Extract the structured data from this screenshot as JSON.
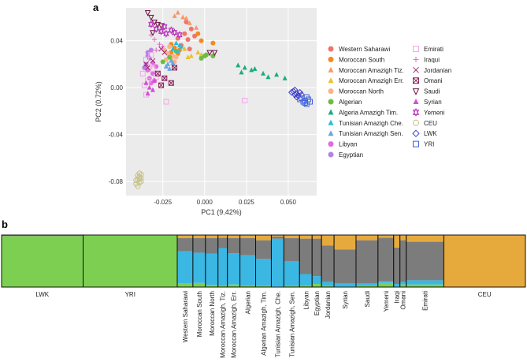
{
  "panel_a_label": "a",
  "panel_b_label": "b",
  "chart_data": [
    {
      "type": "scatter",
      "xlabel": "PC1 (9.42%)",
      "ylabel": "PC2 (0.72%)",
      "xlim": [
        -0.047,
        0.067
      ],
      "ylim": [
        -0.092,
        0.068
      ],
      "xticks": [
        "-0.025",
        "0.000",
        "0.025",
        "0.050"
      ],
      "xtick_values": [
        -0.025,
        0.0,
        0.025,
        0.05
      ],
      "yticks": [
        "0.04",
        "0.00",
        "-0.04",
        "-0.08"
      ],
      "ytick_values": [
        0.04,
        0.0,
        -0.04,
        -0.08
      ],
      "grid": true,
      "background": "#ebebeb",
      "legend_position": "right",
      "series": [
        {
          "name": "Western Saharawi",
          "color": "#f0736b",
          "marker": "circle",
          "points": [
            [
              -0.012,
              0.046
            ],
            [
              -0.01,
              0.041
            ],
            [
              -0.008,
              0.05
            ],
            [
              -0.014,
              0.036
            ],
            [
              -0.009,
              0.033
            ],
            [
              -0.016,
              0.042
            ],
            [
              -0.011,
              0.056
            ],
            [
              -0.006,
              0.044
            ]
          ]
        },
        {
          "name": "Moroccan South",
          "color": "#f28a1e",
          "marker": "circle",
          "points": [
            [
              -0.02,
              0.03
            ],
            [
              -0.018,
              0.034
            ],
            [
              -0.02,
              0.037
            ],
            [
              -0.016,
              0.029
            ],
            [
              -0.004,
              0.046
            ],
            [
              -0.002,
              0.04
            ],
            [
              0.005,
              0.038
            ],
            [
              -0.015,
              0.032
            ]
          ]
        },
        {
          "name": "Moroccan Amazigh Tiz.",
          "color": "#f59a6b",
          "marker": "triangle",
          "points": [
            [
              -0.013,
              0.06
            ],
            [
              -0.016,
              0.064
            ],
            [
              -0.011,
              0.059
            ],
            [
              -0.005,
              0.051
            ],
            [
              -0.018,
              0.061
            ],
            [
              -0.009,
              0.055
            ]
          ]
        },
        {
          "name": "Moroccan Amazigh Err.",
          "color": "#e8c230",
          "marker": "triangle",
          "points": [
            [
              -0.008,
              0.027
            ],
            [
              -0.004,
              0.03
            ],
            [
              -0.012,
              0.033
            ],
            [
              -0.01,
              0.026
            ],
            [
              -0.002,
              0.028
            ]
          ]
        },
        {
          "name": "Moroccan North",
          "color": "#f7b58a",
          "marker": "circle",
          "points": [
            [
              -0.022,
              0.029
            ],
            [
              -0.02,
              0.025
            ],
            [
              -0.024,
              0.032
            ],
            [
              -0.018,
              0.022
            ],
            [
              -0.021,
              0.035
            ],
            [
              -0.019,
              0.027
            ],
            [
              -0.023,
              0.024
            ],
            [
              -0.017,
              0.026
            ]
          ]
        },
        {
          "name": "Algerian",
          "color": "#6cbd45",
          "marker": "circle",
          "points": [
            [
              -0.021,
              0.026
            ],
            [
              -0.017,
              0.031
            ],
            [
              -0.025,
              0.022
            ],
            [
              0.001,
              0.028
            ],
            [
              0.005,
              0.027
            ],
            [
              -0.002,
              0.025
            ],
            [
              0.0,
              0.027
            ]
          ]
        },
        {
          "name": "Algeria Amazigh Tim.",
          "color": "#1aad7e",
          "marker": "triangle",
          "points": [
            [
              0.02,
              0.019
            ],
            [
              0.024,
              0.017
            ],
            [
              0.028,
              0.015
            ],
            [
              0.035,
              0.012
            ],
            [
              0.038,
              0.009
            ],
            [
              0.043,
              0.011
            ],
            [
              0.048,
              0.008
            ],
            [
              0.022,
              0.013
            ],
            [
              0.03,
              0.016
            ]
          ]
        },
        {
          "name": "Tunisian Amazigh Che.",
          "color": "#2bbcd8",
          "marker": "triangle",
          "points": [
            [
              -0.017,
              0.038
            ],
            [
              -0.015,
              0.036
            ],
            [
              -0.019,
              0.033
            ],
            [
              -0.014,
              0.035
            ],
            [
              -0.016,
              0.031
            ]
          ]
        },
        {
          "name": "Tunisian Amazigh Sen.",
          "color": "#6aa6e0",
          "marker": "triangle",
          "points": [
            [
              -0.022,
              0.02
            ],
            [
              -0.02,
              0.023
            ],
            [
              -0.023,
              0.018
            ],
            [
              -0.019,
              0.021
            ],
            [
              -0.021,
              0.016
            ]
          ]
        },
        {
          "name": "Libyan",
          "color": "#e26be0",
          "marker": "circle",
          "points": [
            [
              -0.033,
              0.008
            ],
            [
              -0.031,
              0.012
            ],
            [
              -0.034,
              0.015
            ],
            [
              -0.03,
              0.006
            ],
            [
              -0.032,
              0.004
            ],
            [
              -0.029,
              0.018
            ],
            [
              -0.031,
              0.021
            ]
          ]
        },
        {
          "name": "Egyptian",
          "color": "#b582e8",
          "marker": "circle",
          "points": [
            [
              -0.035,
              0.02
            ],
            [
              -0.033,
              0.025
            ],
            [
              -0.034,
              0.03
            ],
            [
              -0.036,
              0.017
            ],
            [
              -0.032,
              0.032
            ],
            [
              -0.034,
              0.027
            ]
          ]
        },
        {
          "name": "Emirati",
          "color": "#f2a6e8",
          "marker": "square",
          "points": [
            [
              -0.036,
              0.002
            ],
            [
              -0.034,
              0.006
            ],
            [
              -0.037,
              0.012
            ],
            [
              -0.033,
              0.018
            ],
            [
              -0.035,
              0.024
            ],
            [
              -0.031,
              0.016
            ],
            [
              -0.029,
              0.009
            ],
            [
              -0.023,
              -0.012
            ],
            [
              0.024,
              -0.011
            ],
            [
              -0.035,
              -0.006
            ],
            [
              -0.032,
              0.028
            ]
          ]
        },
        {
          "name": "Iraqui",
          "color": "#e06bc0",
          "marker": "plus",
          "points": [
            [
              -0.032,
              0.045
            ],
            [
              -0.03,
              0.041
            ],
            [
              -0.027,
              0.037
            ],
            [
              -0.029,
              0.032
            ],
            [
              -0.025,
              0.035
            ]
          ]
        },
        {
          "name": "Jordanian",
          "color": "#a0226e",
          "marker": "x",
          "points": [
            [
              -0.035,
              0.02
            ],
            [
              -0.031,
              0.023
            ],
            [
              -0.026,
              0.033
            ],
            [
              -0.024,
              0.03
            ],
            [
              -0.034,
              0.017
            ]
          ]
        },
        {
          "name": "Omani",
          "color": "#8a1e5a",
          "marker": "box-x",
          "points": [
            [
              -0.028,
              0.012
            ],
            [
              -0.024,
              0.008
            ],
            [
              -0.02,
              0.004
            ],
            [
              -0.018,
              0.017
            ],
            [
              -0.026,
              0.002
            ]
          ]
        },
        {
          "name": "Saudi",
          "color": "#6e1040",
          "marker": "triangle-down",
          "points": [
            [
              -0.034,
              0.064
            ],
            [
              -0.032,
              0.06
            ],
            [
              -0.03,
              0.056
            ],
            [
              -0.028,
              0.054
            ],
            [
              -0.026,
              0.053
            ],
            [
              -0.031,
              0.047
            ],
            [
              0.003,
              0.03
            ],
            [
              0.006,
              0.03
            ]
          ]
        },
        {
          "name": "Syrian",
          "color": "#d44ed4",
          "marker": "triangle",
          "points": [
            [
              -0.034,
              -0.005
            ],
            [
              -0.031,
              -0.002
            ],
            [
              -0.035,
              0.004
            ],
            [
              -0.03,
              0.006
            ],
            [
              -0.033,
              0.0
            ]
          ]
        },
        {
          "name": "Yemeni",
          "color": "#b22ab8",
          "marker": "star",
          "points": [
            [
              -0.029,
              0.05
            ],
            [
              -0.026,
              0.048
            ],
            [
              -0.023,
              0.046
            ],
            [
              -0.02,
              0.049
            ],
            [
              -0.018,
              0.047
            ],
            [
              -0.015,
              0.045
            ],
            [
              -0.032,
              0.054
            ],
            [
              -0.024,
              0.052
            ]
          ]
        },
        {
          "name": "CEU",
          "color": "#c6c28a",
          "marker": "circle-open",
          "points": [
            [
              -0.039,
              -0.076
            ],
            [
              -0.04,
              -0.078
            ],
            [
              -0.038,
              -0.08
            ],
            [
              -0.039,
              -0.073
            ],
            [
              -0.041,
              -0.082
            ],
            [
              -0.038,
              -0.077
            ],
            [
              -0.04,
              -0.075
            ],
            [
              -0.039,
              -0.081
            ],
            [
              -0.041,
              -0.079
            ],
            [
              -0.038,
              -0.074
            ],
            [
              -0.04,
              -0.084
            ],
            [
              -0.039,
              -0.078
            ]
          ]
        },
        {
          "name": "LWK",
          "color": "#3c3cc8",
          "marker": "diamond",
          "points": [
            [
              0.053,
              -0.003
            ],
            [
              0.055,
              -0.005
            ],
            [
              0.054,
              -0.002
            ],
            [
              0.056,
              -0.007
            ],
            [
              0.057,
              -0.004
            ],
            [
              0.052,
              -0.004
            ],
            [
              0.055,
              -0.008
            ],
            [
              0.058,
              -0.006
            ],
            [
              0.054,
              -0.006
            ]
          ]
        },
        {
          "name": "YRI",
          "color": "#4060d8",
          "marker": "square",
          "points": [
            [
              0.058,
              -0.009
            ],
            [
              0.06,
              -0.011
            ],
            [
              0.061,
              -0.008
            ],
            [
              0.059,
              -0.012
            ],
            [
              0.062,
              -0.01
            ],
            [
              0.06,
              -0.013
            ],
            [
              0.063,
              -0.012
            ],
            [
              0.061,
              -0.014
            ],
            [
              0.057,
              -0.01
            ]
          ]
        }
      ]
    },
    {
      "type": "bar",
      "subtype": "stacked-admixture",
      "components": [
        {
          "color": "#7dcf52"
        },
        {
          "color": "#3bb7e3"
        },
        {
          "color": "#7c7c7c"
        },
        {
          "color": "#e6a93c"
        }
      ],
      "populations": [
        {
          "name": "LWK",
          "size": 26,
          "label_rotated": false,
          "props": [
            0.98,
            0.0,
            0.02,
            0.0
          ]
        },
        {
          "name": "YRI",
          "size": 30,
          "label_rotated": false,
          "props": [
            0.99,
            0.0,
            0.01,
            0.0
          ]
        },
        {
          "name": "Western Saharawi",
          "size": 5,
          "label_rotated": true,
          "props": [
            0.07,
            0.62,
            0.25,
            0.06
          ]
        },
        {
          "name": "Moroccan South",
          "size": 4,
          "label_rotated": true,
          "props": [
            0.08,
            0.58,
            0.28,
            0.06
          ]
        },
        {
          "name": "Moroccan North",
          "size": 4,
          "label_rotated": true,
          "props": [
            0.04,
            0.6,
            0.3,
            0.06
          ]
        },
        {
          "name": "Moroccan Amazigh, Tiz.",
          "size": 3,
          "label_rotated": true,
          "props": [
            0.03,
            0.72,
            0.2,
            0.05
          ]
        },
        {
          "name": "Moroccan Amazigh, Err.",
          "size": 4,
          "label_rotated": true,
          "props": [
            0.05,
            0.6,
            0.29,
            0.06
          ]
        },
        {
          "name": "Algerian",
          "size": 5,
          "label_rotated": true,
          "props": [
            0.03,
            0.58,
            0.33,
            0.06
          ]
        },
        {
          "name": "Algerian Amazigh, Tim.",
          "size": 5,
          "label_rotated": true,
          "props": [
            0.02,
            0.52,
            0.36,
            0.1
          ]
        },
        {
          "name": "Tunisian Amazigh, Che.",
          "size": 4,
          "label_rotated": true,
          "props": [
            0.01,
            0.92,
            0.04,
            0.03
          ]
        },
        {
          "name": "Tunisian Amazigh, Sen.",
          "size": 5,
          "label_rotated": true,
          "props": [
            0.02,
            0.48,
            0.44,
            0.06
          ]
        },
        {
          "name": "Libyan",
          "size": 4,
          "label_rotated": true,
          "props": [
            0.03,
            0.22,
            0.68,
            0.07
          ]
        },
        {
          "name": "Egyptian",
          "size": 3,
          "label_rotated": true,
          "props": [
            0.06,
            0.15,
            0.72,
            0.07
          ]
        },
        {
          "name": "Jordanian",
          "size": 4,
          "label_rotated": true,
          "props": [
            0.02,
            0.08,
            0.7,
            0.2
          ]
        },
        {
          "name": "Syrian",
          "size": 7,
          "label_rotated": true,
          "props": [
            0.01,
            0.06,
            0.65,
            0.28
          ]
        },
        {
          "name": "Saudi",
          "size": 7,
          "label_rotated": true,
          "props": [
            0.03,
            0.04,
            0.83,
            0.1
          ]
        },
        {
          "name": "Yemeni",
          "size": 5,
          "label_rotated": true,
          "props": [
            0.08,
            0.03,
            0.84,
            0.05
          ]
        },
        {
          "name": "Iraqi",
          "size": 2,
          "label_rotated": true,
          "props": [
            0.01,
            0.05,
            0.7,
            0.24
          ]
        },
        {
          "name": "Omani",
          "size": 2,
          "label_rotated": true,
          "props": [
            0.05,
            0.05,
            0.8,
            0.1
          ]
        },
        {
          "name": "Emirati",
          "size": 12,
          "label_rotated": true,
          "props": [
            0.05,
            0.08,
            0.74,
            0.13
          ]
        },
        {
          "name": "CEU",
          "size": 26,
          "label_rotated": false,
          "props": [
            0.0,
            0.0,
            0.0,
            1.0
          ]
        }
      ]
    }
  ]
}
